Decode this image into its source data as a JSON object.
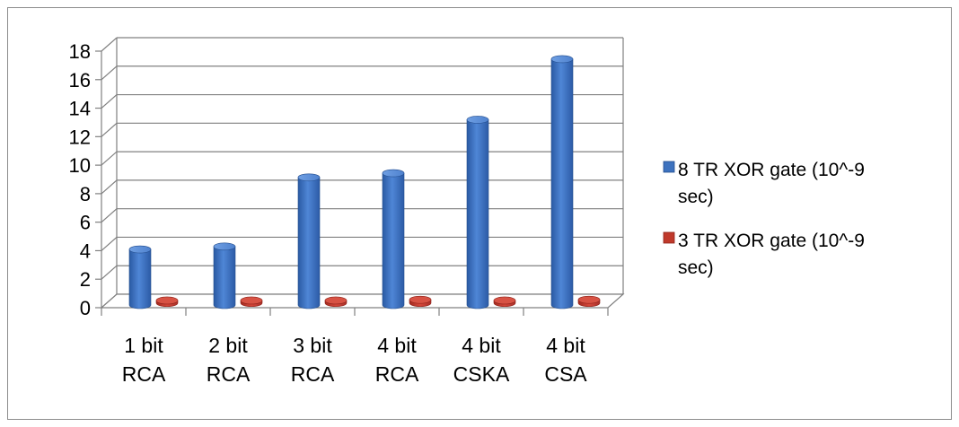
{
  "chart_data": {
    "type": "bar",
    "style": "3d-clustered-column",
    "categories": [
      [
        "1 bit",
        "RCA"
      ],
      [
        "2 bit",
        "RCA"
      ],
      [
        "3 bit",
        "RCA"
      ],
      [
        "4 bit",
        "RCA"
      ],
      [
        "4 bit",
        "CSKA"
      ],
      [
        "4 bit",
        "CSA"
      ]
    ],
    "series": [
      {
        "name": [
          "8 TR XOR gate (10^-9",
          "sec)"
        ],
        "color": "#3d72bf",
        "values": [
          3.9,
          4.1,
          8.95,
          9.25,
          13.0,
          17.25
        ]
      },
      {
        "name": [
          "3 TR XOR gate (10^-9",
          "sec)"
        ],
        "color": "#c0392b",
        "values": [
          0.05,
          0.05,
          0.05,
          0.1,
          0.05,
          0.1
        ]
      }
    ],
    "yticks": [
      "0",
      "2",
      "4",
      "6",
      "8",
      "10",
      "12",
      "14",
      "16",
      "18"
    ],
    "ylim": [
      0,
      18
    ],
    "grid": true,
    "legend": "right",
    "title": "",
    "xlabel": "",
    "ylabel": ""
  }
}
